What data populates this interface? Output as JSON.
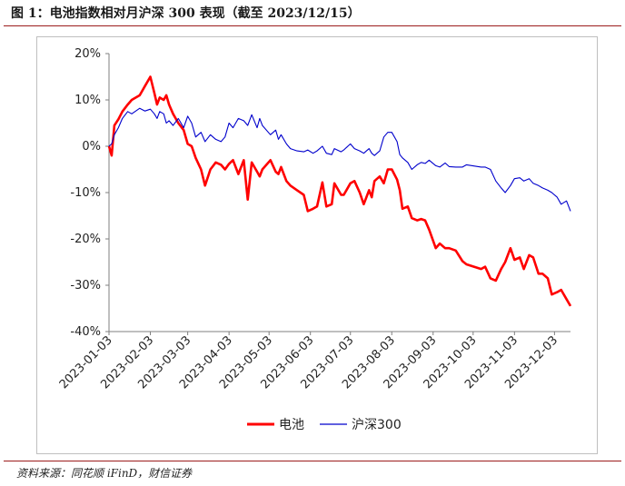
{
  "figure": {
    "title": "图 1：电池指数相对月沪深 300 表现（截至 2023/12/15）",
    "source": "资料来源：同花顺 iFinD，财信证券"
  },
  "colors": {
    "battery": "#ff0000",
    "csi300": "#0000cc",
    "axis": "#7f7f7f",
    "accent_rule": "#9c1c1c"
  },
  "chart_data": {
    "type": "line",
    "title": "",
    "xlabel": "",
    "ylabel": "",
    "ylim": [
      -40,
      20
    ],
    "yticks": [
      20,
      10,
      0,
      -10,
      -20,
      -30,
      -40
    ],
    "ytick_labels": [
      "20%",
      "10%",
      "0%",
      "-10%",
      "-20%",
      "-30%",
      "-40%"
    ],
    "xticks": [
      "2023-01-03",
      "2023-02-03",
      "2023-03-03",
      "2023-04-03",
      "2023-05-03",
      "2023-06-03",
      "2023-07-03",
      "2023-08-03",
      "2023-09-03",
      "2023-10-03",
      "2023-11-03",
      "2023-12-03"
    ],
    "xlim": [
      "2023-01-03",
      "2023-12-15"
    ],
    "grid": false,
    "legend_position": "bottom",
    "series": [
      {
        "name": "电池",
        "color": "#ff0000",
        "x": [
          "2023-01-03",
          "2023-01-05",
          "2023-01-07",
          "2023-01-10",
          "2023-01-13",
          "2023-01-17",
          "2023-01-20",
          "2023-01-26",
          "2023-01-30",
          "2023-02-03",
          "2023-02-06",
          "2023-02-08",
          "2023-02-10",
          "2023-02-13",
          "2023-02-15",
          "2023-02-17",
          "2023-02-20",
          "2023-02-24",
          "2023-02-28",
          "2023-03-03",
          "2023-03-06",
          "2023-03-09",
          "2023-03-13",
          "2023-03-16",
          "2023-03-20",
          "2023-03-24",
          "2023-03-28",
          "2023-03-31",
          "2023-04-03",
          "2023-04-06",
          "2023-04-10",
          "2023-04-14",
          "2023-04-17",
          "2023-04-20",
          "2023-04-24",
          "2023-04-26",
          "2023-04-28",
          "2023-05-04",
          "2023-05-08",
          "2023-05-10",
          "2023-05-12",
          "2023-05-16",
          "2023-05-19",
          "2023-05-24",
          "2023-05-29",
          "2023-06-01",
          "2023-06-05",
          "2023-06-08",
          "2023-06-12",
          "2023-06-15",
          "2023-06-19",
          "2023-06-21",
          "2023-06-26",
          "2023-06-28",
          "2023-07-03",
          "2023-07-06",
          "2023-07-10",
          "2023-07-13",
          "2023-07-17",
          "2023-07-19",
          "2023-07-21",
          "2023-07-25",
          "2023-07-28",
          "2023-07-31",
          "2023-08-03",
          "2023-08-07",
          "2023-08-09",
          "2023-08-11",
          "2023-08-15",
          "2023-08-18",
          "2023-08-22",
          "2023-08-25",
          "2023-08-28",
          "2023-08-31",
          "2023-09-05",
          "2023-09-08",
          "2023-09-12",
          "2023-09-15",
          "2023-09-20",
          "2023-09-25",
          "2023-09-28",
          "2023-10-09",
          "2023-10-12",
          "2023-10-16",
          "2023-10-20",
          "2023-10-24",
          "2023-10-27",
          "2023-10-31",
          "2023-11-03",
          "2023-11-07",
          "2023-11-10",
          "2023-11-14",
          "2023-11-17",
          "2023-11-21",
          "2023-11-24",
          "2023-11-28",
          "2023-12-01",
          "2023-12-05",
          "2023-12-08",
          "2023-12-12",
          "2023-12-15"
        ],
        "values": [
          0,
          -2,
          4.5,
          5.8,
          7.5,
          9,
          10,
          11,
          13,
          15,
          11.5,
          9,
          10.5,
          10,
          11,
          9,
          7,
          5,
          3.5,
          0.5,
          0,
          -2.5,
          -5,
          -8.5,
          -5,
          -3.5,
          -4,
          -5,
          -3.8,
          -3,
          -6,
          -3,
          -11.5,
          -3.5,
          -5.5,
          -6.5,
          -5,
          -3,
          -5.5,
          -6,
          -4.5,
          -7.5,
          -8.5,
          -9.5,
          -10.5,
          -14,
          -13.5,
          -13,
          -7.8,
          -13,
          -12.5,
          -8,
          -10.5,
          -10.5,
          -8,
          -7.5,
          -10,
          -12.5,
          -9.5,
          -11,
          -7.5,
          -6.5,
          -8,
          -5,
          -5,
          -7.2,
          -9.5,
          -13.5,
          -13,
          -15.5,
          -16,
          -15.7,
          -16,
          -18,
          -22,
          -21,
          -22,
          -22,
          -22.5,
          -24.8,
          -25.5,
          -26.5,
          -26,
          -28.5,
          -29,
          -26.5,
          -25,
          -22,
          -24.5,
          -24,
          -26.5,
          -23.5,
          -24,
          -27.5,
          -27.5,
          -28.5,
          -32,
          -31.5,
          -31,
          -33,
          -34.5
        ]
      },
      {
        "name": "沪深300",
        "color": "#0000cc",
        "x": [
          "2023-01-03",
          "2023-01-05",
          "2023-01-07",
          "2023-01-10",
          "2023-01-13",
          "2023-01-17",
          "2023-01-20",
          "2023-01-26",
          "2023-01-30",
          "2023-02-03",
          "2023-02-06",
          "2023-02-08",
          "2023-02-10",
          "2023-02-13",
          "2023-02-15",
          "2023-02-17",
          "2023-02-20",
          "2023-02-24",
          "2023-02-28",
          "2023-03-03",
          "2023-03-06",
          "2023-03-09",
          "2023-03-13",
          "2023-03-16",
          "2023-03-20",
          "2023-03-24",
          "2023-03-28",
          "2023-03-31",
          "2023-04-03",
          "2023-04-06",
          "2023-04-10",
          "2023-04-14",
          "2023-04-17",
          "2023-04-20",
          "2023-04-24",
          "2023-04-26",
          "2023-04-28",
          "2023-05-04",
          "2023-05-08",
          "2023-05-10",
          "2023-05-12",
          "2023-05-16",
          "2023-05-19",
          "2023-05-24",
          "2023-05-29",
          "2023-06-01",
          "2023-06-05",
          "2023-06-08",
          "2023-06-12",
          "2023-06-15",
          "2023-06-19",
          "2023-06-21",
          "2023-06-26",
          "2023-06-28",
          "2023-07-03",
          "2023-07-06",
          "2023-07-10",
          "2023-07-13",
          "2023-07-17",
          "2023-07-19",
          "2023-07-21",
          "2023-07-25",
          "2023-07-28",
          "2023-07-31",
          "2023-08-03",
          "2023-08-07",
          "2023-08-09",
          "2023-08-11",
          "2023-08-15",
          "2023-08-18",
          "2023-08-22",
          "2023-08-25",
          "2023-08-28",
          "2023-08-31",
          "2023-09-05",
          "2023-09-08",
          "2023-09-12",
          "2023-09-15",
          "2023-09-20",
          "2023-09-25",
          "2023-09-28",
          "2023-10-09",
          "2023-10-12",
          "2023-10-16",
          "2023-10-20",
          "2023-10-24",
          "2023-10-27",
          "2023-10-31",
          "2023-11-03",
          "2023-11-07",
          "2023-11-10",
          "2023-11-14",
          "2023-11-17",
          "2023-11-21",
          "2023-11-24",
          "2023-11-28",
          "2023-12-01",
          "2023-12-05",
          "2023-12-08",
          "2023-12-12",
          "2023-12-15"
        ],
        "values": [
          0,
          0.5,
          2.5,
          4,
          6,
          7.5,
          7,
          8.2,
          7.6,
          8,
          7,
          6,
          7.5,
          7,
          5,
          5.5,
          4.5,
          6,
          4,
          6.5,
          5,
          2,
          3,
          1,
          2.5,
          1.5,
          1,
          2,
          5,
          4,
          6,
          5.5,
          4.5,
          6.8,
          4,
          6,
          4.5,
          2.5,
          3.5,
          1.5,
          2.5,
          0.5,
          -0.5,
          -1,
          -1.2,
          -0.8,
          -1.5,
          -1,
          0,
          -1.5,
          -1.8,
          -0.5,
          -1.2,
          -0.8,
          0.5,
          -0.5,
          -1,
          -1.5,
          -0.5,
          -1.5,
          -2,
          -1,
          2,
          3,
          3,
          1,
          -1.8,
          -2.5,
          -3.5,
          -5,
          -4,
          -3.5,
          -3.7,
          -3,
          -4.2,
          -4.5,
          -3.6,
          -4.4,
          -4.5,
          -4.5,
          -4,
          -4.5,
          -4.5,
          -5,
          -7.5,
          -9,
          -10,
          -8.5,
          -7,
          -6.8,
          -7.5,
          -7,
          -8,
          -8.5,
          -9,
          -9.5,
          -10,
          -11,
          -12.5,
          -11.8,
          -14
        ]
      }
    ]
  }
}
